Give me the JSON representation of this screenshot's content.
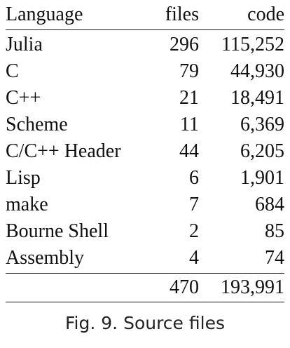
{
  "table": {
    "headers": {
      "language": "Language",
      "files": "files",
      "code": "code"
    },
    "rows": [
      {
        "language": "Julia",
        "files": "296",
        "code": "115,252"
      },
      {
        "language": "C",
        "files": "79",
        "code": "44,930"
      },
      {
        "language": "C++",
        "files": "21",
        "code": "18,491"
      },
      {
        "language": "Scheme",
        "files": "11",
        "code": "6,369"
      },
      {
        "language": "C/C++ Header",
        "files": "44",
        "code": "6,205"
      },
      {
        "language": "Lisp",
        "files": "6",
        "code": "1,901"
      },
      {
        "language": "make",
        "files": "7",
        "code": "684"
      },
      {
        "language": "Bourne Shell",
        "files": "2",
        "code": "85"
      },
      {
        "language": "Assembly",
        "files": "4",
        "code": "74"
      }
    ],
    "total": {
      "language": "",
      "files": "470",
      "code": "193,991"
    }
  },
  "caption": "Fig. 9.  Source files"
}
